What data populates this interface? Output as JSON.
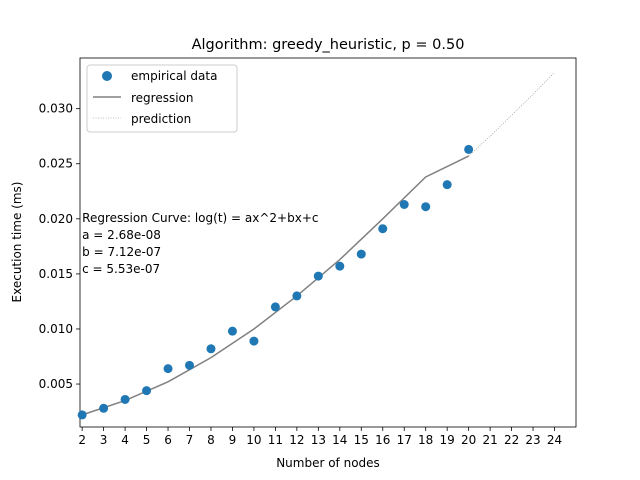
{
  "chart_data": {
    "type": "scatter",
    "title": "Algorithm: greedy_heuristic, p = 0.50",
    "xlabel": "Number of nodes",
    "ylabel": "Execution time (ms)",
    "xlim": [
      1.9,
      25.0
    ],
    "ylim": [
      0.0011,
      0.0346
    ],
    "x_ticks": [
      2,
      3,
      4,
      5,
      6,
      7,
      8,
      9,
      10,
      11,
      12,
      13,
      14,
      15,
      16,
      17,
      18,
      19,
      20,
      21,
      22,
      23,
      24
    ],
    "y_ticks": [
      0.005,
      0.01,
      0.015,
      0.02,
      0.025,
      0.03
    ],
    "y_tick_labels": [
      "0.005",
      "0.010",
      "0.015",
      "0.020",
      "0.025",
      "0.030"
    ],
    "grid": false,
    "legend_position": "top-left",
    "series": [
      {
        "name": "empirical data",
        "kind": "scatter",
        "color": "#1f77b4",
        "x": [
          2,
          3,
          4,
          5,
          6,
          7,
          8,
          9,
          10,
          11,
          12,
          13,
          14,
          15,
          16,
          17,
          18,
          19,
          20
        ],
        "y": [
          0.0022,
          0.0028,
          0.0036,
          0.0044,
          0.0064,
          0.0067,
          0.0082,
          0.0098,
          0.0089,
          0.012,
          0.013,
          0.0148,
          0.0157,
          0.0168,
          0.0191,
          0.0213,
          0.0211,
          0.0231,
          0.0263
        ]
      },
      {
        "name": "regression",
        "kind": "line",
        "color": "#808080",
        "x": [
          2,
          4,
          6,
          8,
          10,
          12,
          14,
          16,
          18,
          20
        ],
        "y": [
          0.0022,
          0.0035,
          0.0052,
          0.0074,
          0.01,
          0.013,
          0.0163,
          0.02,
          0.0238,
          0.0257
        ]
      },
      {
        "name": "prediction",
        "kind": "dotted-line",
        "color": "#808080",
        "x": [
          20,
          21,
          22,
          23,
          24
        ],
        "y": [
          0.0257,
          0.0275,
          0.0294,
          0.0313,
          0.0333
        ]
      }
    ],
    "annotation": {
      "lines": [
        "Regression Curve: log(t) = ax^2+bx+c",
        "a = 2.68e-08",
        "b = 7.12e-07",
        "c = 5.53e-07"
      ],
      "anchor_x": 2,
      "anchor_y": 0.0197
    }
  }
}
